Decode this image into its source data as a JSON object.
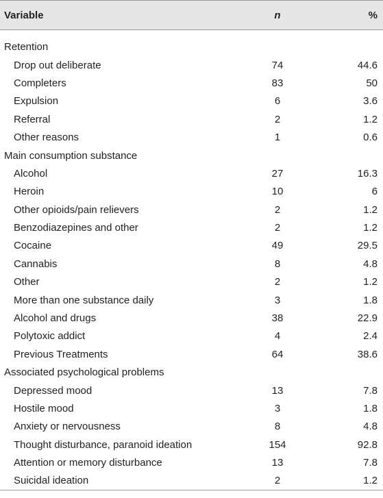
{
  "header": [
    "Variable",
    "n",
    "%"
  ],
  "sections": [
    {
      "label": "Retention",
      "rows": [
        [
          "Drop out deliberate",
          74,
          44.6
        ],
        [
          "Completers",
          83,
          50
        ],
        [
          "Expulsion",
          6,
          3.6
        ],
        [
          "Referral",
          2,
          1.2
        ],
        [
          "Other reasons",
          1,
          0.6
        ]
      ]
    },
    {
      "label": "Main consumption substance",
      "rows": [
        [
          "Alcohol",
          27,
          16.3
        ],
        [
          "Heroin",
          10,
          6
        ],
        [
          "Other opioids/pain relievers",
          2,
          1.2
        ],
        [
          "Benzodiazepines and other",
          2,
          1.2
        ],
        [
          "Cocaine",
          49,
          29.5
        ],
        [
          "Cannabis",
          8,
          4.8
        ],
        [
          "Other",
          2,
          1.2
        ],
        [
          "More than one substance daily",
          3,
          1.8
        ],
        [
          "Alcohol and drugs",
          38,
          22.9
        ],
        [
          "Polytoxic addict",
          4,
          2.4
        ],
        [
          "Previous Treatments",
          64,
          38.6
        ]
      ]
    },
    {
      "label": "Associated psychological problems",
      "rows": [
        [
          "Depressed mood",
          13,
          7.8
        ],
        [
          "Hostile mood",
          3,
          1.8
        ],
        [
          "Anxiety or nervousness",
          8,
          4.8
        ],
        [
          "Thought disturbance, paranoid ideation",
          154,
          92.8
        ],
        [
          "Attention or memory disturbance",
          13,
          7.8
        ],
        [
          "Suicidal ideation",
          2,
          1.2
        ]
      ]
    }
  ]
}
